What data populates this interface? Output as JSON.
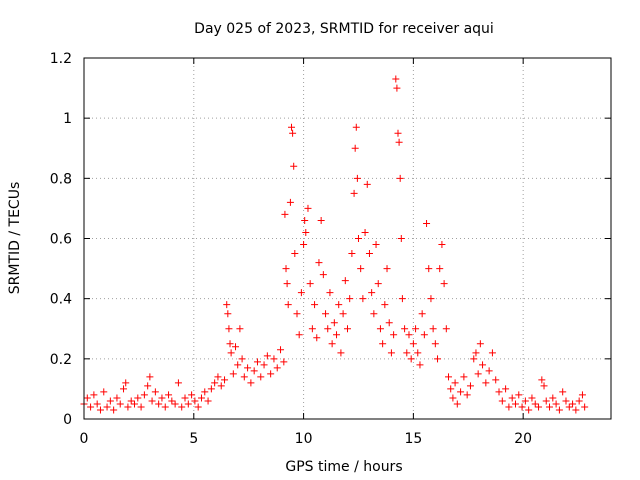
{
  "chart_data": {
    "type": "scatter",
    "title": "Day 025 of 2023, SRMTID for receiver aqui",
    "xlabel": "GPS time / hours",
    "ylabel": "SRMTID / TECUs",
    "xlim": [
      0,
      24
    ],
    "ylim": [
      0,
      1.2
    ],
    "x_ticks": [
      0,
      5,
      10,
      15,
      20
    ],
    "x_tick_labels": [
      "0",
      "5",
      "10",
      "15",
      "20"
    ],
    "y_ticks": [
      0,
      0.2,
      0.4,
      0.6,
      0.8,
      1.0,
      1.2
    ],
    "y_tick_labels": [
      "0",
      "0.2",
      "0.4",
      "0.6",
      "0.8",
      "1",
      "1.2"
    ],
    "grid": true,
    "marker": "+",
    "marker_color": "#ff0000",
    "series": [
      {
        "name": "SRMTID",
        "points": [
          [
            0.0,
            0.05
          ],
          [
            0.15,
            0.07
          ],
          [
            0.3,
            0.04
          ],
          [
            0.45,
            0.08
          ],
          [
            0.6,
            0.05
          ],
          [
            0.75,
            0.03
          ],
          [
            0.9,
            0.09
          ],
          [
            1.05,
            0.04
          ],
          [
            1.2,
            0.06
          ],
          [
            1.35,
            0.03
          ],
          [
            1.5,
            0.07
          ],
          [
            1.65,
            0.05
          ],
          [
            1.8,
            0.1
          ],
          [
            1.9,
            0.12
          ],
          [
            2.0,
            0.04
          ],
          [
            2.15,
            0.06
          ],
          [
            2.3,
            0.05
          ],
          [
            2.45,
            0.07
          ],
          [
            2.6,
            0.04
          ],
          [
            2.75,
            0.08
          ],
          [
            2.9,
            0.11
          ],
          [
            3.0,
            0.14
          ],
          [
            3.1,
            0.06
          ],
          [
            3.25,
            0.09
          ],
          [
            3.4,
            0.05
          ],
          [
            3.55,
            0.07
          ],
          [
            3.7,
            0.04
          ],
          [
            3.85,
            0.08
          ],
          [
            4.0,
            0.06
          ],
          [
            4.15,
            0.05
          ],
          [
            4.3,
            0.12
          ],
          [
            4.45,
            0.04
          ],
          [
            4.6,
            0.07
          ],
          [
            4.75,
            0.05
          ],
          [
            4.9,
            0.08
          ],
          [
            5.05,
            0.06
          ],
          [
            5.2,
            0.04
          ],
          [
            5.35,
            0.07
          ],
          [
            5.5,
            0.09
          ],
          [
            5.65,
            0.06
          ],
          [
            5.8,
            0.1
          ],
          [
            5.95,
            0.12
          ],
          [
            6.1,
            0.14
          ],
          [
            6.25,
            0.11
          ],
          [
            6.4,
            0.13
          ],
          [
            6.5,
            0.38
          ],
          [
            6.55,
            0.35
          ],
          [
            6.6,
            0.3
          ],
          [
            6.65,
            0.25
          ],
          [
            6.7,
            0.22
          ],
          [
            6.8,
            0.15
          ],
          [
            6.9,
            0.24
          ],
          [
            7.0,
            0.18
          ],
          [
            7.1,
            0.3
          ],
          [
            7.2,
            0.2
          ],
          [
            7.3,
            0.14
          ],
          [
            7.45,
            0.17
          ],
          [
            7.6,
            0.12
          ],
          [
            7.75,
            0.16
          ],
          [
            7.9,
            0.19
          ],
          [
            8.05,
            0.14
          ],
          [
            8.2,
            0.18
          ],
          [
            8.35,
            0.21
          ],
          [
            8.5,
            0.15
          ],
          [
            8.65,
            0.2
          ],
          [
            8.8,
            0.17
          ],
          [
            8.95,
            0.23
          ],
          [
            9.1,
            0.19
          ],
          [
            9.15,
            0.68
          ],
          [
            9.2,
            0.5
          ],
          [
            9.25,
            0.45
          ],
          [
            9.3,
            0.38
          ],
          [
            9.4,
            0.72
          ],
          [
            9.45,
            0.97
          ],
          [
            9.5,
            0.95
          ],
          [
            9.55,
            0.84
          ],
          [
            9.6,
            0.55
          ],
          [
            9.7,
            0.35
          ],
          [
            9.8,
            0.28
          ],
          [
            9.9,
            0.42
          ],
          [
            10.0,
            0.58
          ],
          [
            10.05,
            0.66
          ],
          [
            10.1,
            0.62
          ],
          [
            10.2,
            0.7
          ],
          [
            10.3,
            0.45
          ],
          [
            10.4,
            0.3
          ],
          [
            10.5,
            0.38
          ],
          [
            10.6,
            0.27
          ],
          [
            10.7,
            0.52
          ],
          [
            10.8,
            0.66
          ],
          [
            10.9,
            0.48
          ],
          [
            11.0,
            0.35
          ],
          [
            11.1,
            0.3
          ],
          [
            11.2,
            0.42
          ],
          [
            11.3,
            0.25
          ],
          [
            11.4,
            0.32
          ],
          [
            11.5,
            0.28
          ],
          [
            11.6,
            0.38
          ],
          [
            11.7,
            0.22
          ],
          [
            11.8,
            0.35
          ],
          [
            11.9,
            0.46
          ],
          [
            12.0,
            0.3
          ],
          [
            12.1,
            0.4
          ],
          [
            12.2,
            0.55
          ],
          [
            12.3,
            0.75
          ],
          [
            12.35,
            0.9
          ],
          [
            12.4,
            0.97
          ],
          [
            12.45,
            0.8
          ],
          [
            12.5,
            0.6
          ],
          [
            12.6,
            0.5
          ],
          [
            12.7,
            0.4
          ],
          [
            12.8,
            0.62
          ],
          [
            12.9,
            0.78
          ],
          [
            13.0,
            0.55
          ],
          [
            13.1,
            0.42
          ],
          [
            13.2,
            0.35
          ],
          [
            13.3,
            0.58
          ],
          [
            13.4,
            0.45
          ],
          [
            13.5,
            0.3
          ],
          [
            13.6,
            0.25
          ],
          [
            13.7,
            0.38
          ],
          [
            13.8,
            0.5
          ],
          [
            13.9,
            0.32
          ],
          [
            14.0,
            0.22
          ],
          [
            14.1,
            0.28
          ],
          [
            14.2,
            1.13
          ],
          [
            14.25,
            1.1
          ],
          [
            14.3,
            0.95
          ],
          [
            14.35,
            0.92
          ],
          [
            14.4,
            0.8
          ],
          [
            14.45,
            0.6
          ],
          [
            14.5,
            0.4
          ],
          [
            14.6,
            0.3
          ],
          [
            14.7,
            0.22
          ],
          [
            14.8,
            0.28
          ],
          [
            14.9,
            0.2
          ],
          [
            15.0,
            0.25
          ],
          [
            15.1,
            0.3
          ],
          [
            15.2,
            0.22
          ],
          [
            15.3,
            0.18
          ],
          [
            15.4,
            0.35
          ],
          [
            15.5,
            0.28
          ],
          [
            15.6,
            0.65
          ],
          [
            15.7,
            0.5
          ],
          [
            15.8,
            0.4
          ],
          [
            15.9,
            0.3
          ],
          [
            16.0,
            0.25
          ],
          [
            16.1,
            0.2
          ],
          [
            16.2,
            0.5
          ],
          [
            16.3,
            0.58
          ],
          [
            16.4,
            0.45
          ],
          [
            16.5,
            0.3
          ],
          [
            16.6,
            0.14
          ],
          [
            16.7,
            0.1
          ],
          [
            16.8,
            0.07
          ],
          [
            16.9,
            0.12
          ],
          [
            17.0,
            0.05
          ],
          [
            17.15,
            0.09
          ],
          [
            17.3,
            0.14
          ],
          [
            17.45,
            0.08
          ],
          [
            17.6,
            0.11
          ],
          [
            17.75,
            0.2
          ],
          [
            17.85,
            0.22
          ],
          [
            17.95,
            0.15
          ],
          [
            18.05,
            0.25
          ],
          [
            18.15,
            0.18
          ],
          [
            18.3,
            0.12
          ],
          [
            18.45,
            0.16
          ],
          [
            18.6,
            0.22
          ],
          [
            18.75,
            0.13
          ],
          [
            18.9,
            0.09
          ],
          [
            19.05,
            0.06
          ],
          [
            19.2,
            0.1
          ],
          [
            19.35,
            0.04
          ],
          [
            19.5,
            0.07
          ],
          [
            19.65,
            0.05
          ],
          [
            19.8,
            0.08
          ],
          [
            19.95,
            0.04
          ],
          [
            20.1,
            0.06
          ],
          [
            20.25,
            0.03
          ],
          [
            20.4,
            0.07
          ],
          [
            20.55,
            0.05
          ],
          [
            20.7,
            0.04
          ],
          [
            20.85,
            0.13
          ],
          [
            20.95,
            0.11
          ],
          [
            21.05,
            0.06
          ],
          [
            21.2,
            0.04
          ],
          [
            21.35,
            0.07
          ],
          [
            21.5,
            0.05
          ],
          [
            21.65,
            0.03
          ],
          [
            21.8,
            0.09
          ],
          [
            21.95,
            0.06
          ],
          [
            22.1,
            0.04
          ],
          [
            22.25,
            0.05
          ],
          [
            22.4,
            0.03
          ],
          [
            22.55,
            0.06
          ],
          [
            22.7,
            0.08
          ],
          [
            22.8,
            0.04
          ]
        ]
      }
    ]
  }
}
